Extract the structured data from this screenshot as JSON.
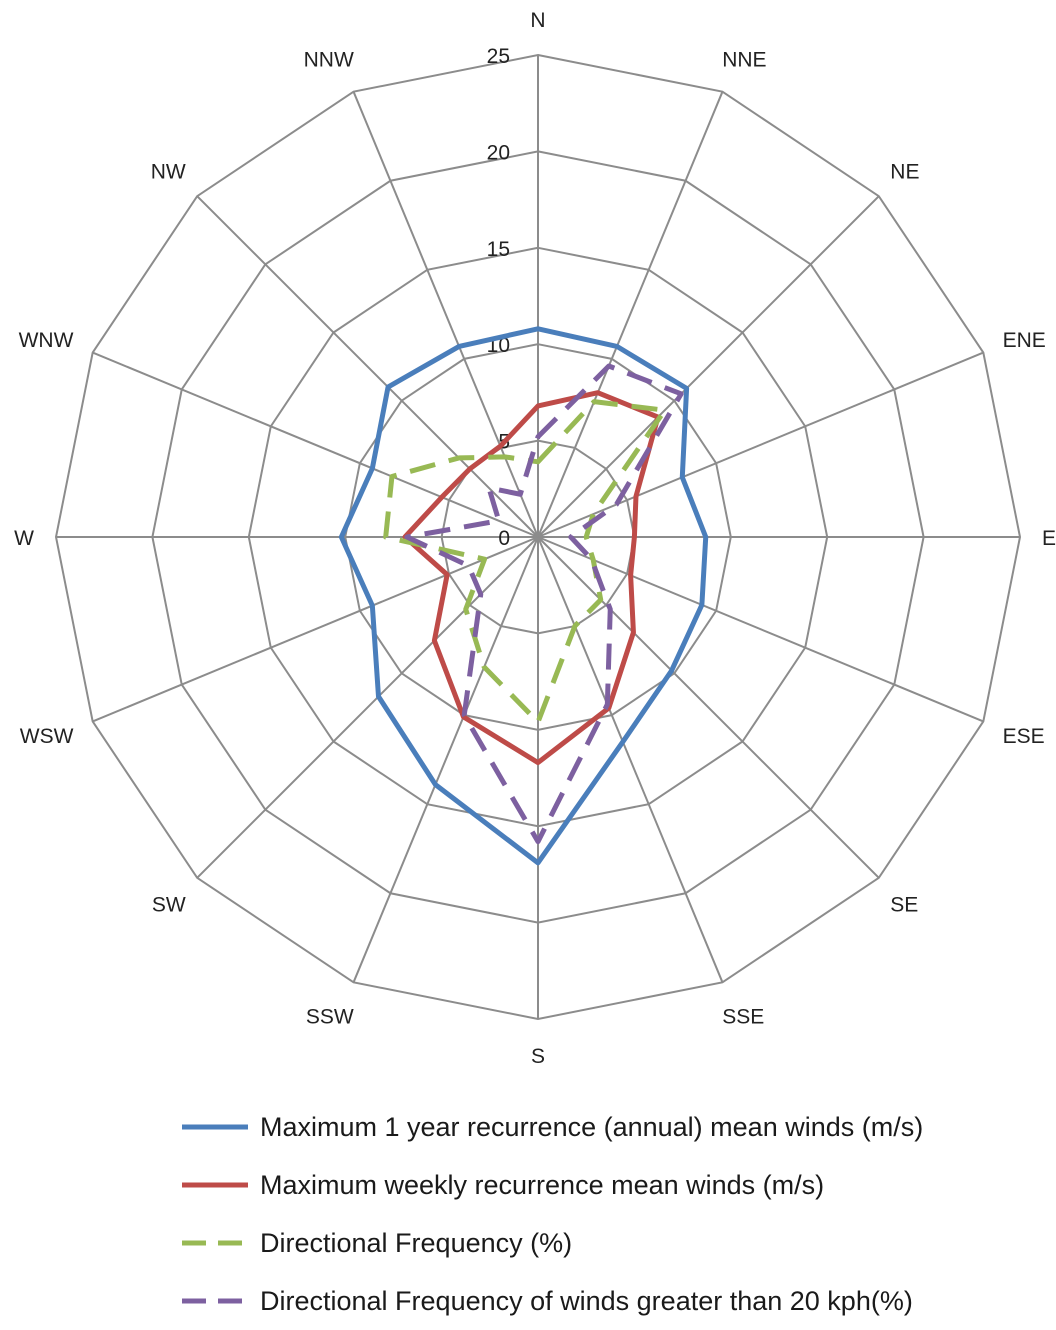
{
  "chart_data": {
    "type": "radar",
    "categories": [
      "N",
      "NNE",
      "NE",
      "ENE",
      "E",
      "ESE",
      "SE",
      "SSE",
      "S",
      "SSW",
      "SW",
      "WSW",
      "W",
      "WNW",
      "NW",
      "NNW"
    ],
    "axis": {
      "min": 0,
      "max": 25,
      "step": 5,
      "ticks": [
        "0",
        "5",
        "10",
        "15",
        "20",
        "25"
      ]
    },
    "grid": true,
    "legend_position": "bottom",
    "series": [
      {
        "name": "Maximum 1 year recurrence (annual) mean winds (m/s)",
        "color": "#4a7ebb",
        "dash": false,
        "values": [
          10.8,
          10.7,
          10.9,
          8.1,
          8.7,
          9.2,
          9.8,
          11.5,
          16.9,
          13.9,
          11.7,
          9.3,
          10.2,
          9.3,
          11.0,
          10.7
        ]
      },
      {
        "name": "Maximum weekly recurrence mean winds (m/s)",
        "color": "#be4b48",
        "dash": false,
        "values": [
          6.8,
          8.1,
          8.8,
          5.5,
          5.0,
          5.2,
          7.0,
          9.6,
          11.7,
          10.1,
          7.6,
          5.1,
          6.9,
          5.4,
          5.0,
          5.1
        ]
      },
      {
        "name": "Directional Frequency (%)",
        "color": "#98b954",
        "dash": true,
        "values": [
          3.9,
          7.6,
          9.3,
          3.1,
          2.5,
          3.1,
          4.6,
          5.0,
          9.6,
          7.3,
          5.3,
          3.0,
          7.9,
          8.2,
          5.8,
          4.5
        ]
      },
      {
        "name": "Directional Frequency  of winds greater than 20 kph(%)",
        "color": "#7d60a0",
        "dash": true,
        "values": [
          5.2,
          9.6,
          10.5,
          4.4,
          1.7,
          3.0,
          5.3,
          9.4,
          15.8,
          10.0,
          4.2,
          3.9,
          6.8,
          2.2,
          3.6,
          2.4
        ]
      }
    ]
  }
}
